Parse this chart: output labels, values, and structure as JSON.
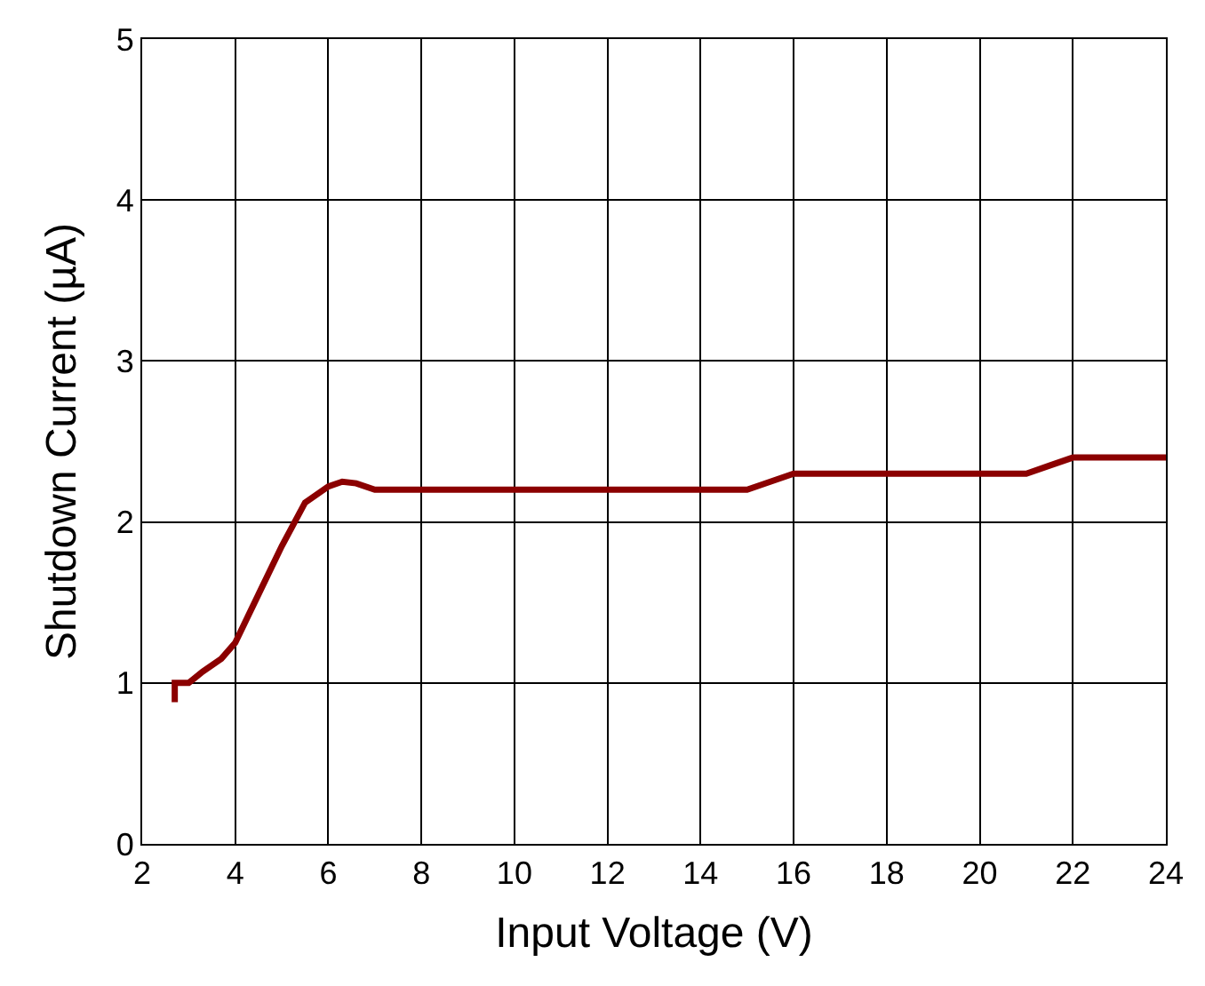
{
  "chart_data": {
    "type": "line",
    "xlabel": "Input Voltage (V)",
    "ylabel": "Shutdown Current (µA)",
    "x": [
      2.7,
      2.7,
      3.0,
      3.3,
      3.7,
      4.0,
      4.5,
      5.0,
      5.5,
      6.0,
      6.3,
      6.6,
      7.0,
      15.0,
      15.5,
      16.0,
      21.0,
      21.5,
      22.0,
      24.0
    ],
    "series": [
      {
        "color": "#8b0000",
        "values": [
          0.88,
          1.0,
          1.0,
          1.07,
          1.15,
          1.25,
          1.55,
          1.85,
          2.12,
          2.22,
          2.25,
          2.24,
          2.2,
          2.2,
          2.25,
          2.3,
          2.3,
          2.35,
          2.4,
          2.4
        ]
      }
    ],
    "xlim": [
      2,
      24
    ],
    "xticks": [
      2,
      4,
      6,
      8,
      10,
      12,
      14,
      16,
      18,
      20,
      22,
      24
    ],
    "ylim": [
      0,
      5
    ],
    "yticks": [
      0,
      1,
      2,
      3,
      4,
      5
    ],
    "grid": true
  }
}
